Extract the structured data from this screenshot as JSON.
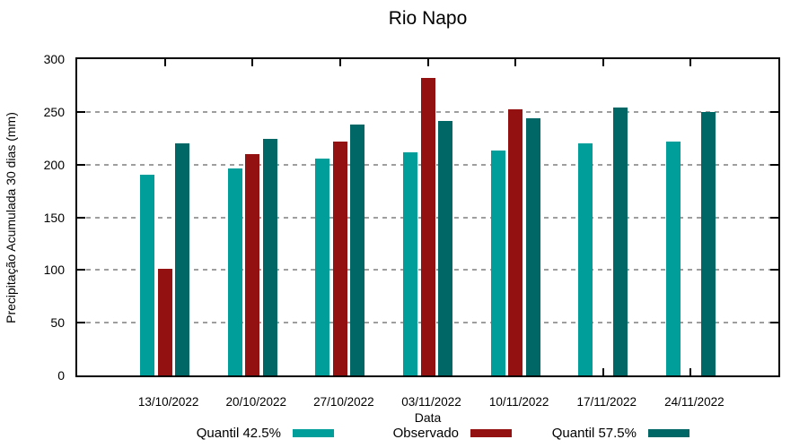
{
  "title": "Rio Napo",
  "y_axis": {
    "label": "Precipitação Acumulada 30 dias (mm)",
    "ticks": [
      0,
      50,
      100,
      150,
      200,
      250,
      300
    ]
  },
  "x_axis": {
    "label": "Data"
  },
  "legend": [
    {
      "label": "Quantil 42.5%",
      "color": "#009e9b"
    },
    {
      "label": "Observado",
      "color": "#941111"
    },
    {
      "label": "Quantil 57.5%",
      "color": "#006767"
    }
  ],
  "colors": {
    "quantil_low": "#009e9b",
    "observado": "#941111",
    "quantil_high": "#006767",
    "grid": "#9e9e9e",
    "border": "#000000"
  },
  "chart_data": {
    "type": "bar",
    "title": "Rio Napo",
    "xlabel": "Data",
    "ylabel": "Precipitação Acumulada 30 dias (mm)",
    "ylim": [
      0,
      300
    ],
    "ytick_step": 50,
    "grid": "horizontal dashed",
    "legend_position": "bottom",
    "categories": [
      "13/10/2022",
      "20/10/2022",
      "27/10/2022",
      "03/11/2022",
      "10/11/2022",
      "17/11/2022",
      "24/11/2022"
    ],
    "series": [
      {
        "name": "Quantil 42.5%",
        "color": "#009e9b",
        "values": [
          190,
          196,
          206,
          212,
          213,
          220,
          222
        ]
      },
      {
        "name": "Observado",
        "color": "#941111",
        "values": [
          101,
          210,
          222,
          282,
          252,
          null,
          null
        ]
      },
      {
        "name": "Quantil 57.5%",
        "color": "#006767",
        "values": [
          220,
          224,
          238,
          241,
          244,
          254,
          250
        ]
      }
    ]
  }
}
